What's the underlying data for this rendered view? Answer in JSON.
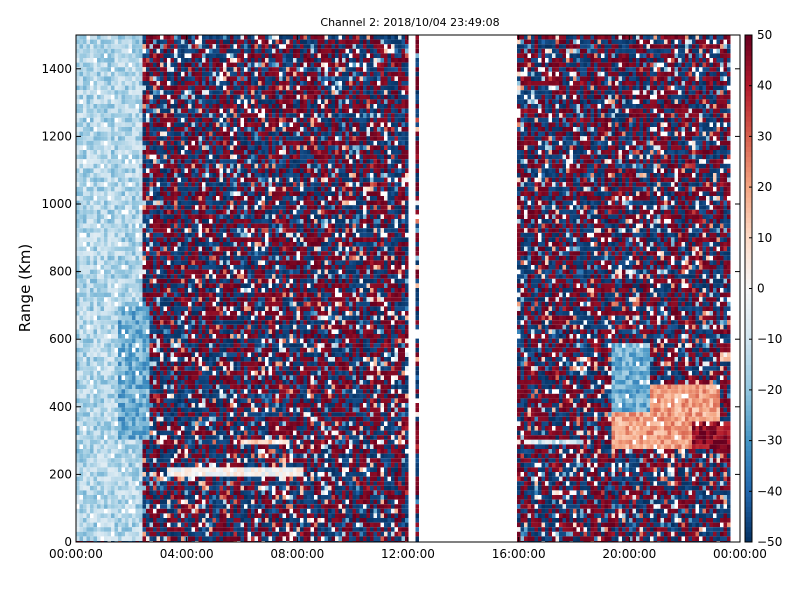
{
  "chart_data": {
    "type": "heatmap",
    "title": "Channel 2: 2018/10/04 23:49:08",
    "ylabel": "Range (Km)",
    "xlabel": "",
    "x_axis": {
      "min_hours": 0,
      "max_hours": 24,
      "ticks": [
        {
          "hours": 0,
          "label": "00:00:00"
        },
        {
          "hours": 4,
          "label": "04:00:00"
        },
        {
          "hours": 8,
          "label": "08:00:00"
        },
        {
          "hours": 12,
          "label": "12:00:00"
        },
        {
          "hours": 16,
          "label": "16:00:00"
        },
        {
          "hours": 20,
          "label": "20:00:00"
        },
        {
          "hours": 24,
          "label": "00:00:00"
        }
      ]
    },
    "y_axis": {
      "min": 0,
      "max": 1500,
      "ticks": [
        0,
        200,
        400,
        600,
        800,
        1000,
        1200,
        1400
      ]
    },
    "colorbar": {
      "min": -50,
      "max": 50,
      "ticks": [
        -50,
        -40,
        -30,
        -20,
        -10,
        0,
        10,
        20,
        30,
        40,
        50
      ],
      "colormap": "RdBu_r",
      "colors": [
        "#053061",
        "#2166ac",
        "#4393c3",
        "#92c5de",
        "#d1e5f0",
        "#f7f7f7",
        "#fddbc7",
        "#f4a582",
        "#d6604d",
        "#b2182b",
        "#67001f"
      ]
    },
    "data_gaps_hours": [
      [
        0,
        0.05
      ],
      [
        12.05,
        12.3
      ],
      [
        12.4,
        16.0
      ],
      [
        23.7,
        24
      ]
    ],
    "features": [
      {
        "name": "low-value band",
        "x_hours": [
          0,
          2.4
        ],
        "range_km": [
          0,
          1500
        ],
        "typical_value": -15
      },
      {
        "name": "low-value arc",
        "x_hours": [
          1.5,
          2.7
        ],
        "range_km": [
          300,
          700
        ],
        "typical_value": -25
      },
      {
        "name": "positive echo",
        "x_hours": [
          19.4,
          23.3
        ],
        "range_km": [
          270,
          460
        ],
        "typical_value": 20
      },
      {
        "name": "negative edge",
        "x_hours": [
          19.3,
          20.8
        ],
        "range_km": [
          380,
          590
        ],
        "typical_value": -25
      },
      {
        "name": "positive streak",
        "x_hours": [
          22.3,
          23.8
        ],
        "range_km": [
          270,
          360
        ],
        "typical_value": 45
      },
      {
        "name": "positive spot",
        "x_hours": [
          23.3,
          23.8
        ],
        "range_km": [
          530,
          560
        ],
        "typical_value": 10
      },
      {
        "name": "horizontal trace",
        "x_hours": [
          3.3,
          8.2
        ],
        "range_km": [
          200,
          215
        ],
        "typical_value": 0
      },
      {
        "name": "horizontal trace",
        "x_hours": [
          6.0,
          7.7
        ],
        "range_km": [
          295,
          305
        ],
        "typical_value": 10
      },
      {
        "name": "horizontal trace",
        "x_hours": [
          16.2,
          18.3
        ],
        "range_km": [
          295,
          305
        ],
        "typical_value": -10
      }
    ],
    "background": "noise spanning the full colour range"
  }
}
